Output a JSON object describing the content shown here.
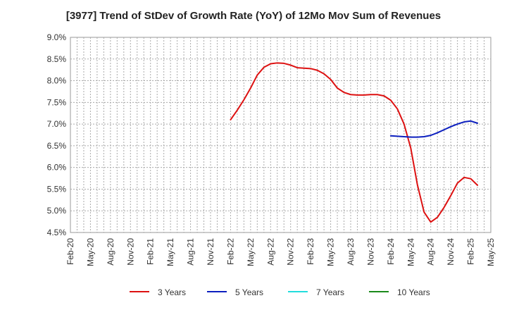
{
  "chart_data": {
    "type": "line",
    "title": "[3977]  Trend of StDev of Growth Rate (YoY) of 12Mo Mov Sum of Revenues",
    "xlabel": "",
    "ylabel": "",
    "grid": true,
    "legend_position": "bottom",
    "x_ticks": [
      "Feb-20",
      "May-20",
      "Aug-20",
      "Nov-20",
      "Feb-21",
      "May-21",
      "Aug-21",
      "Nov-21",
      "Feb-22",
      "May-22",
      "Aug-22",
      "Nov-22",
      "Feb-23",
      "May-23",
      "Aug-23",
      "Nov-23",
      "Feb-24",
      "May-24",
      "Aug-24",
      "Nov-24",
      "Feb-25",
      "May-25"
    ],
    "y_ticks": [
      "9.0%",
      "8.5%",
      "8.0%",
      "7.5%",
      "7.0%",
      "6.5%",
      "6.0%",
      "5.5%",
      "5.0%",
      "4.5%"
    ],
    "ylim": [
      4.5,
      9.0
    ],
    "x_range_months": [
      0,
      63
    ],
    "series": [
      {
        "name": "3 Years",
        "color": "#dd1111",
        "points": [
          {
            "m": 24,
            "v": 7.1
          },
          {
            "m": 25,
            "v": 7.32
          },
          {
            "m": 26,
            "v": 7.56
          },
          {
            "m": 27,
            "v": 7.83
          },
          {
            "m": 28,
            "v": 8.13
          },
          {
            "m": 29,
            "v": 8.31
          },
          {
            "m": 30,
            "v": 8.39
          },
          {
            "m": 31,
            "v": 8.41
          },
          {
            "m": 32,
            "v": 8.4
          },
          {
            "m": 33,
            "v": 8.36
          },
          {
            "m": 34,
            "v": 8.3
          },
          {
            "m": 35,
            "v": 8.29
          },
          {
            "m": 36,
            "v": 8.28
          },
          {
            "m": 37,
            "v": 8.24
          },
          {
            "m": 38,
            "v": 8.16
          },
          {
            "m": 39,
            "v": 8.03
          },
          {
            "m": 40,
            "v": 7.83
          },
          {
            "m": 41,
            "v": 7.73
          },
          {
            "m": 42,
            "v": 7.68
          },
          {
            "m": 43,
            "v": 7.67
          },
          {
            "m": 44,
            "v": 7.67
          },
          {
            "m": 45,
            "v": 7.68
          },
          {
            "m": 46,
            "v": 7.68
          },
          {
            "m": 47,
            "v": 7.65
          },
          {
            "m": 48,
            "v": 7.55
          },
          {
            "m": 49,
            "v": 7.35
          },
          {
            "m": 50,
            "v": 7.0
          },
          {
            "m": 51,
            "v": 6.45
          },
          {
            "m": 52,
            "v": 5.6
          },
          {
            "m": 53,
            "v": 4.97
          },
          {
            "m": 54,
            "v": 4.74
          },
          {
            "m": 55,
            "v": 4.85
          },
          {
            "m": 56,
            "v": 5.08
          },
          {
            "m": 57,
            "v": 5.35
          },
          {
            "m": 58,
            "v": 5.64
          },
          {
            "m": 59,
            "v": 5.77
          },
          {
            "m": 60,
            "v": 5.74
          },
          {
            "m": 61,
            "v": 5.59
          }
        ]
      },
      {
        "name": "5 Years",
        "color": "#0c1fbf",
        "points": [
          {
            "m": 48,
            "v": 6.73
          },
          {
            "m": 49,
            "v": 6.72
          },
          {
            "m": 50,
            "v": 6.71
          },
          {
            "m": 51,
            "v": 6.7
          },
          {
            "m": 52,
            "v": 6.7
          },
          {
            "m": 53,
            "v": 6.71
          },
          {
            "m": 54,
            "v": 6.74
          },
          {
            "m": 55,
            "v": 6.8
          },
          {
            "m": 56,
            "v": 6.87
          },
          {
            "m": 57,
            "v": 6.94
          },
          {
            "m": 58,
            "v": 7.0
          },
          {
            "m": 59,
            "v": 7.05
          },
          {
            "m": 60,
            "v": 7.07
          },
          {
            "m": 61,
            "v": 7.02
          }
        ]
      },
      {
        "name": "7 Years",
        "color": "#22dddd",
        "points": []
      },
      {
        "name": "10 Years",
        "color": "#1b8a1b",
        "points": []
      }
    ]
  }
}
